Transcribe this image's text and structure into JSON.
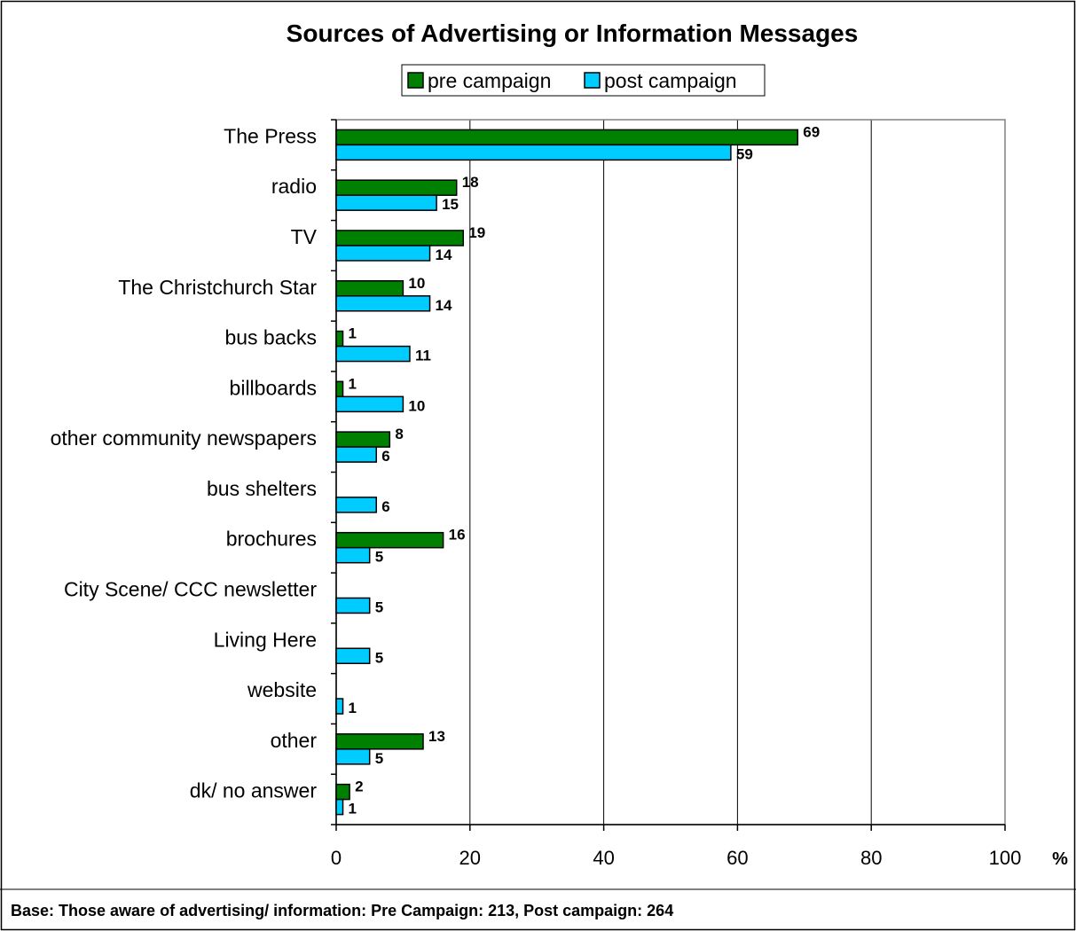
{
  "chart_data": {
    "type": "bar",
    "orientation": "horizontal",
    "title": "Sources of Advertising or Information Messages",
    "unit_label": "%",
    "footnote": "Base:  Those aware of advertising/ information: Pre Campaign: 213,  Post campaign:  264",
    "categories": [
      "The Press",
      "radio",
      "TV",
      "The Christchurch Star",
      "bus backs",
      "billboards",
      "other community newspapers",
      "bus shelters",
      "brochures",
      "City Scene/ CCC newsletter",
      "Living Here",
      "website",
      "other",
      "dk/ no answer"
    ],
    "series": [
      {
        "name": "pre campaign",
        "color": "#008000",
        "values": [
          69,
          18,
          19,
          10,
          1,
          1,
          8,
          null,
          16,
          null,
          null,
          null,
          13,
          2
        ]
      },
      {
        "name": "post campaign",
        "color": "#00CCFF",
        "values": [
          59,
          15,
          14,
          14,
          11,
          10,
          6,
          6,
          5,
          5,
          5,
          1,
          5,
          1
        ]
      }
    ],
    "xlim": [
      0,
      100
    ],
    "xticks": [
      0,
      20,
      40,
      60,
      80,
      100
    ],
    "grid": "vertical",
    "legend": "top-center"
  }
}
